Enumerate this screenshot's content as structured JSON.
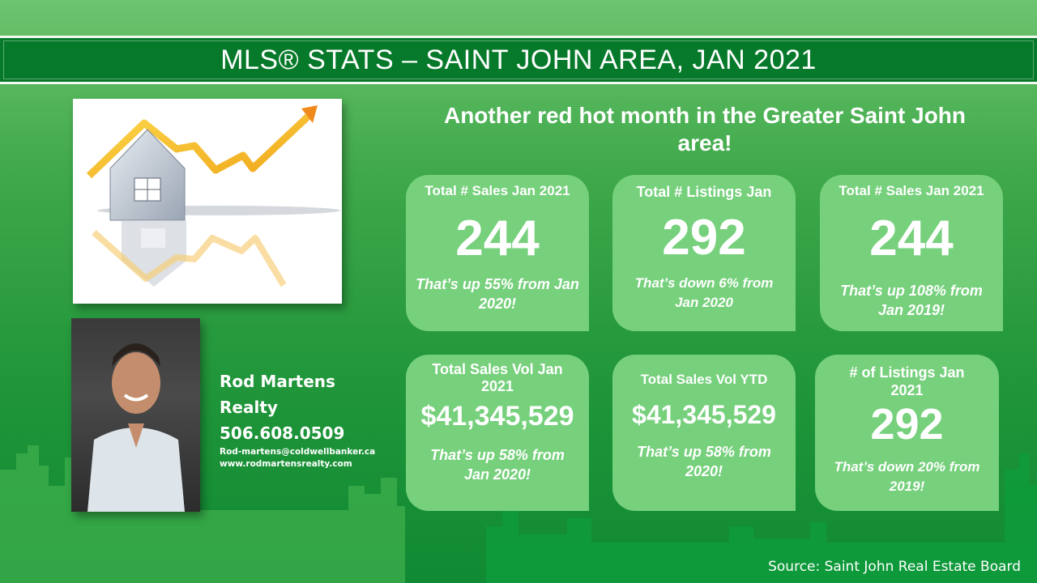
{
  "header": {
    "title": "MLS® STATS – SAINT JOHN AREA, JAN 2021"
  },
  "headline": "Another red hot month in the Greater Saint John area!",
  "contact": {
    "name": "Rod Martens",
    "company": "Realty",
    "phone": "506.608.0509",
    "email": "Rod-martens@coldwellbanker.ca",
    "website": "www.rodmartensrealty.com"
  },
  "cards": [
    {
      "label": "Total # Sales Jan 2021",
      "value": "244",
      "note": "That’s up 55% from Jan 2020!"
    },
    {
      "label": "Total # Listings Jan",
      "value": "292",
      "note": "That’s down 6% from Jan 2020"
    },
    {
      "label": "Total # Sales Jan 2021",
      "value": "244",
      "note": "That’s up 108% from Jan 2019!"
    },
    {
      "label": "Total Sales Vol Jan 2021",
      "value": "$41,345,529",
      "note": "That’s up 58% from Jan 2020!"
    },
    {
      "label": "Total Sales Vol YTD",
      "value": "$41,345,529",
      "note": "That’s up 58% from 2020!"
    },
    {
      "label": "# of Listings Jan 2021",
      "value": "292",
      "note": "That’s down 20% from 2019!"
    }
  ],
  "footer": {
    "source": "Source: Saint John Real Estate Board"
  },
  "colors": {
    "title_bar": "#067a2a",
    "card": "#76d07c",
    "arrow_gold": "#f2b21c",
    "arrow_orange": "#f08a1c"
  }
}
